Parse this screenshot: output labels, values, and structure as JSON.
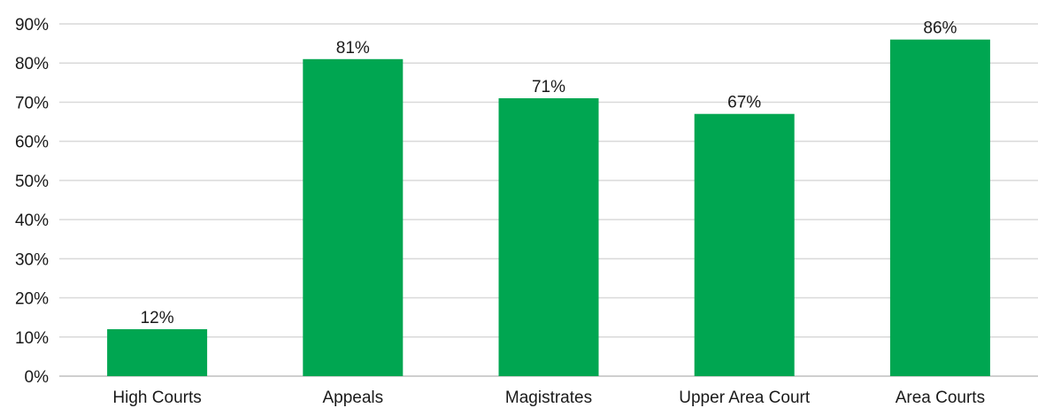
{
  "chart_data": {
    "type": "bar",
    "categories": [
      "High Courts",
      "Appeals",
      "Magistrates",
      "Upper Area Court",
      "Area Courts"
    ],
    "values": [
      12,
      81,
      71,
      67,
      86
    ],
    "data_labels": [
      "12%",
      "81%",
      "71%",
      "67%",
      "86%"
    ],
    "ylim": [
      0,
      90
    ],
    "y_ticks": [
      0,
      10,
      20,
      30,
      40,
      50,
      60,
      70,
      80,
      90
    ],
    "y_tick_labels": [
      "0%",
      "10%",
      "20%",
      "30%",
      "40%",
      "50%",
      "60%",
      "70%",
      "80%",
      "90%"
    ],
    "grid": true,
    "legend": "none",
    "colors": {
      "bar": "#00a651",
      "grid": "#d9d9d9"
    }
  }
}
